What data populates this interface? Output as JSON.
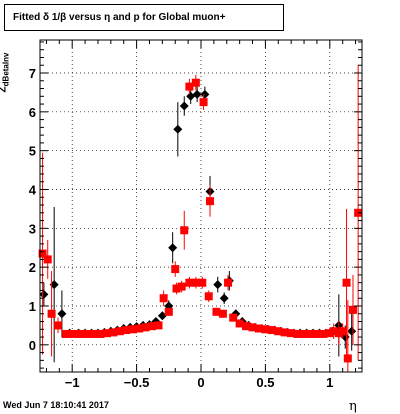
{
  "title": "Fitted δ 1/β versus η and p for Global muon+",
  "timestamp": "Wed Jun  7 18:10:41 2017",
  "colors": {
    "black_series": "#000000",
    "red_series": "#ff0000",
    "grid": "#000000"
  },
  "chart_data": {
    "type": "scatter",
    "title": "Fitted δ 1/β versus η and p for Global muon+",
    "xlabel": "η",
    "ylabel_main": "Z",
    "ylabel_sub": "dBetaInv",
    "xlim": [
      -1.25,
      1.25
    ],
    "ylim": [
      -0.7,
      7.85
    ],
    "xticks": [
      -1,
      -0.5,
      0,
      0.5,
      1
    ],
    "xtick_labels": [
      "−1",
      "−0.5",
      "0",
      "0.5",
      "1"
    ],
    "yticks": [
      0,
      1,
      2,
      3,
      4,
      5,
      6,
      7
    ],
    "ytick_labels": [
      "0",
      "1",
      "2",
      "3",
      "4",
      "5",
      "6",
      "7"
    ],
    "grid": true,
    "series": [
      {
        "color": "#000000",
        "marker": "diamond",
        "points": [
          {
            "x": -1.22,
            "y": 1.3,
            "err": 0.3
          },
          {
            "x": -1.14,
            "y": 1.55,
            "err": 2.0
          },
          {
            "x": -1.08,
            "y": 0.8,
            "err": 0.6
          },
          {
            "x": -1.02,
            "y": 0.3,
            "err": 0.1
          },
          {
            "x": -0.95,
            "y": 0.3,
            "err": 0.05
          },
          {
            "x": -0.9,
            "y": 0.3,
            "err": 0.05
          },
          {
            "x": -0.85,
            "y": 0.3,
            "err": 0.05
          },
          {
            "x": -0.8,
            "y": 0.3,
            "err": 0.05
          },
          {
            "x": -0.75,
            "y": 0.32,
            "err": 0.05
          },
          {
            "x": -0.7,
            "y": 0.35,
            "err": 0.05
          },
          {
            "x": -0.65,
            "y": 0.38,
            "err": 0.05
          },
          {
            "x": -0.6,
            "y": 0.42,
            "err": 0.05
          },
          {
            "x": -0.55,
            "y": 0.45,
            "err": 0.05
          },
          {
            "x": -0.5,
            "y": 0.47,
            "err": 0.05
          },
          {
            "x": -0.45,
            "y": 0.5,
            "err": 0.05
          },
          {
            "x": -0.4,
            "y": 0.52,
            "err": 0.05
          },
          {
            "x": -0.35,
            "y": 0.6,
            "err": 0.08
          },
          {
            "x": -0.3,
            "y": 0.75,
            "err": 0.1
          },
          {
            "x": -0.25,
            "y": 1.0,
            "err": 0.15
          },
          {
            "x": -0.22,
            "y": 2.5,
            "err": 0.4
          },
          {
            "x": -0.18,
            "y": 5.55,
            "err": 0.7
          },
          {
            "x": -0.13,
            "y": 6.15,
            "err": 0.25
          },
          {
            "x": -0.08,
            "y": 6.4,
            "err": 0.2
          },
          {
            "x": -0.03,
            "y": 6.45,
            "err": 0.2
          },
          {
            "x": 0.03,
            "y": 6.45,
            "err": 0.2
          },
          {
            "x": 0.07,
            "y": 3.95,
            "err": 0.4
          },
          {
            "x": 0.13,
            "y": 1.55,
            "err": 0.2
          },
          {
            "x": 0.18,
            "y": 1.2,
            "err": 0.15
          },
          {
            "x": 0.22,
            "y": 1.65,
            "err": 0.25
          },
          {
            "x": 0.27,
            "y": 0.8,
            "err": 0.1
          },
          {
            "x": 0.32,
            "y": 0.6,
            "err": 0.08
          },
          {
            "x": 0.37,
            "y": 0.5,
            "err": 0.05
          },
          {
            "x": 0.42,
            "y": 0.45,
            "err": 0.05
          },
          {
            "x": 0.47,
            "y": 0.42,
            "err": 0.05
          },
          {
            "x": 0.52,
            "y": 0.4,
            "err": 0.05
          },
          {
            "x": 0.57,
            "y": 0.38,
            "err": 0.05
          },
          {
            "x": 0.62,
            "y": 0.35,
            "err": 0.05
          },
          {
            "x": 0.67,
            "y": 0.32,
            "err": 0.05
          },
          {
            "x": 0.72,
            "y": 0.3,
            "err": 0.05
          },
          {
            "x": 0.77,
            "y": 0.3,
            "err": 0.05
          },
          {
            "x": 0.82,
            "y": 0.3,
            "err": 0.05
          },
          {
            "x": 0.87,
            "y": 0.3,
            "err": 0.05
          },
          {
            "x": 0.92,
            "y": 0.3,
            "err": 0.05
          },
          {
            "x": 0.97,
            "y": 0.3,
            "err": 0.1
          },
          {
            "x": 1.02,
            "y": 0.35,
            "err": 0.1
          },
          {
            "x": 1.07,
            "y": 0.5,
            "err": 0.8
          },
          {
            "x": 1.12,
            "y": 0.2,
            "err": 0.3
          },
          {
            "x": 1.17,
            "y": 0.35,
            "err": 0.5
          }
        ]
      },
      {
        "color": "#ff0000",
        "marker": "square",
        "points": [
          {
            "x": -1.23,
            "y": 2.35,
            "err": 2.6
          },
          {
            "x": -1.19,
            "y": 2.2,
            "err": 0.5
          },
          {
            "x": -1.16,
            "y": 0.8,
            "err": 1.1
          },
          {
            "x": -1.11,
            "y": 0.5,
            "err": 0.2
          },
          {
            "x": -1.05,
            "y": 0.28,
            "err": 0.1
          },
          {
            "x": -0.99,
            "y": 0.28,
            "err": 0.05
          },
          {
            "x": -0.93,
            "y": 0.28,
            "err": 0.05
          },
          {
            "x": -0.88,
            "y": 0.28,
            "err": 0.05
          },
          {
            "x": -0.83,
            "y": 0.28,
            "err": 0.05
          },
          {
            "x": -0.78,
            "y": 0.28,
            "err": 0.05
          },
          {
            "x": -0.73,
            "y": 0.3,
            "err": 0.05
          },
          {
            "x": -0.68,
            "y": 0.32,
            "err": 0.05
          },
          {
            "x": -0.63,
            "y": 0.35,
            "err": 0.05
          },
          {
            "x": -0.58,
            "y": 0.38,
            "err": 0.05
          },
          {
            "x": -0.53,
            "y": 0.4,
            "err": 0.05
          },
          {
            "x": -0.48,
            "y": 0.42,
            "err": 0.05
          },
          {
            "x": -0.43,
            "y": 0.45,
            "err": 0.05
          },
          {
            "x": -0.38,
            "y": 0.48,
            "err": 0.05
          },
          {
            "x": -0.33,
            "y": 0.5,
            "err": 0.05
          },
          {
            "x": -0.29,
            "y": 1.2,
            "err": 0.2
          },
          {
            "x": -0.25,
            "y": 0.85,
            "err": 0.1
          },
          {
            "x": -0.2,
            "y": 1.95,
            "err": 0.2
          },
          {
            "x": -0.19,
            "y": 1.45,
            "err": 0.15
          },
          {
            "x": -0.15,
            "y": 1.5,
            "err": 0.15
          },
          {
            "x": -0.13,
            "y": 2.95,
            "err": 0.5
          },
          {
            "x": -0.09,
            "y": 1.6,
            "err": 0.15
          },
          {
            "x": -0.09,
            "y": 6.65,
            "err": 0.2
          },
          {
            "x": -0.04,
            "y": 6.75,
            "err": 0.2
          },
          {
            "x": -0.04,
            "y": 1.6,
            "err": 0.15
          },
          {
            "x": 0.01,
            "y": 1.6,
            "err": 0.15
          },
          {
            "x": 0.02,
            "y": 6.25,
            "err": 0.2
          },
          {
            "x": 0.06,
            "y": 1.25,
            "err": 0.15
          },
          {
            "x": 0.07,
            "y": 3.7,
            "err": 0.4
          },
          {
            "x": 0.12,
            "y": 0.85,
            "err": 0.1
          },
          {
            "x": 0.17,
            "y": 0.8,
            "err": 0.1
          },
          {
            "x": 0.21,
            "y": 1.6,
            "err": 0.2
          },
          {
            "x": 0.25,
            "y": 0.7,
            "err": 0.08
          },
          {
            "x": 0.3,
            "y": 0.55,
            "err": 0.05
          },
          {
            "x": 0.35,
            "y": 0.48,
            "err": 0.05
          },
          {
            "x": 0.4,
            "y": 0.45,
            "err": 0.05
          },
          {
            "x": 0.45,
            "y": 0.42,
            "err": 0.05
          },
          {
            "x": 0.5,
            "y": 0.4,
            "err": 0.05
          },
          {
            "x": 0.55,
            "y": 0.38,
            "err": 0.05
          },
          {
            "x": 0.6,
            "y": 0.35,
            "err": 0.05
          },
          {
            "x": 0.65,
            "y": 0.32,
            "err": 0.05
          },
          {
            "x": 0.7,
            "y": 0.3,
            "err": 0.05
          },
          {
            "x": 0.75,
            "y": 0.28,
            "err": 0.05
          },
          {
            "x": 0.8,
            "y": 0.28,
            "err": 0.05
          },
          {
            "x": 0.85,
            "y": 0.28,
            "err": 0.05
          },
          {
            "x": 0.9,
            "y": 0.28,
            "err": 0.05
          },
          {
            "x": 0.95,
            "y": 0.28,
            "err": 0.05
          },
          {
            "x": 1.0,
            "y": 0.3,
            "err": 0.1
          },
          {
            "x": 1.03,
            "y": 0.35,
            "err": 0.2
          },
          {
            "x": 1.07,
            "y": 0.3,
            "err": 0.3
          },
          {
            "x": 1.13,
            "y": 1.6,
            "err": 1.9
          },
          {
            "x": 1.14,
            "y": -0.35,
            "err": 1.5
          },
          {
            "x": 1.18,
            "y": 0.9,
            "err": 0.9
          },
          {
            "x": 1.22,
            "y": 3.4,
            "err": 3.8
          },
          {
            "x": 1.1,
            "y": 0.35,
            "err": 0.2
          }
        ]
      }
    ]
  }
}
